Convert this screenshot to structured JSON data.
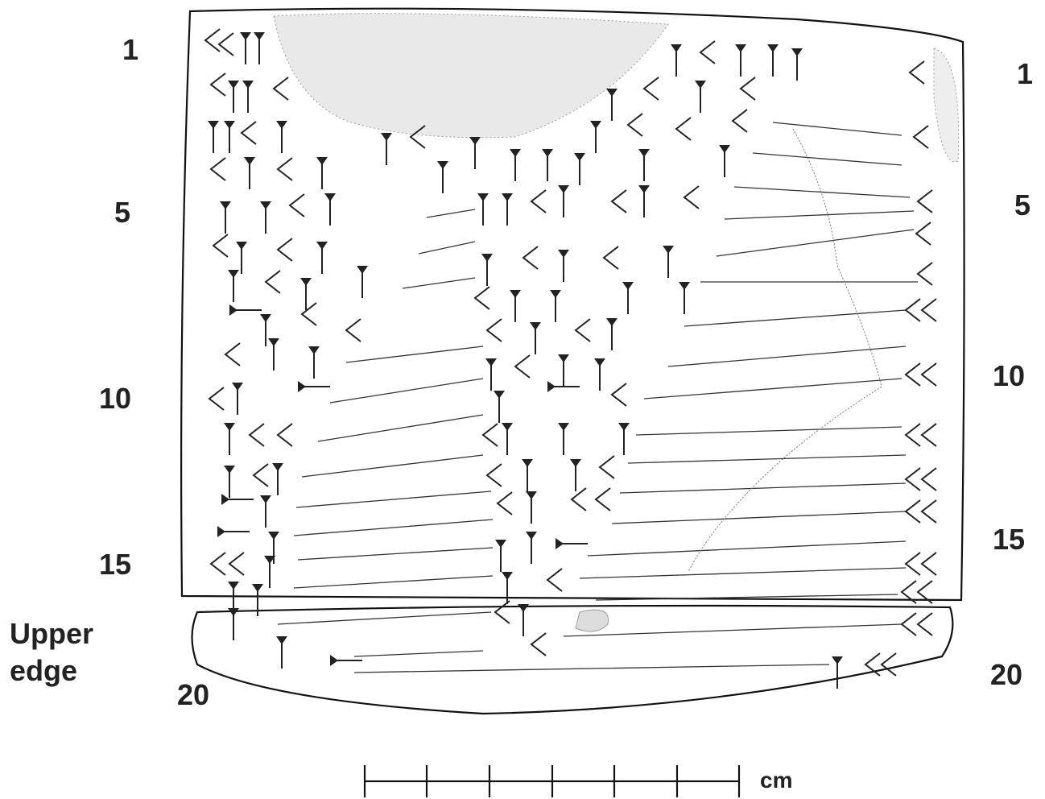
{
  "left_labels": [
    "1",
    "5",
    "10",
    "15",
    "20"
  ],
  "right_labels": [
    "1",
    "5",
    "10",
    "15",
    "20"
  ],
  "edge_label": "Upper edge",
  "scale_unit": "cm"
}
